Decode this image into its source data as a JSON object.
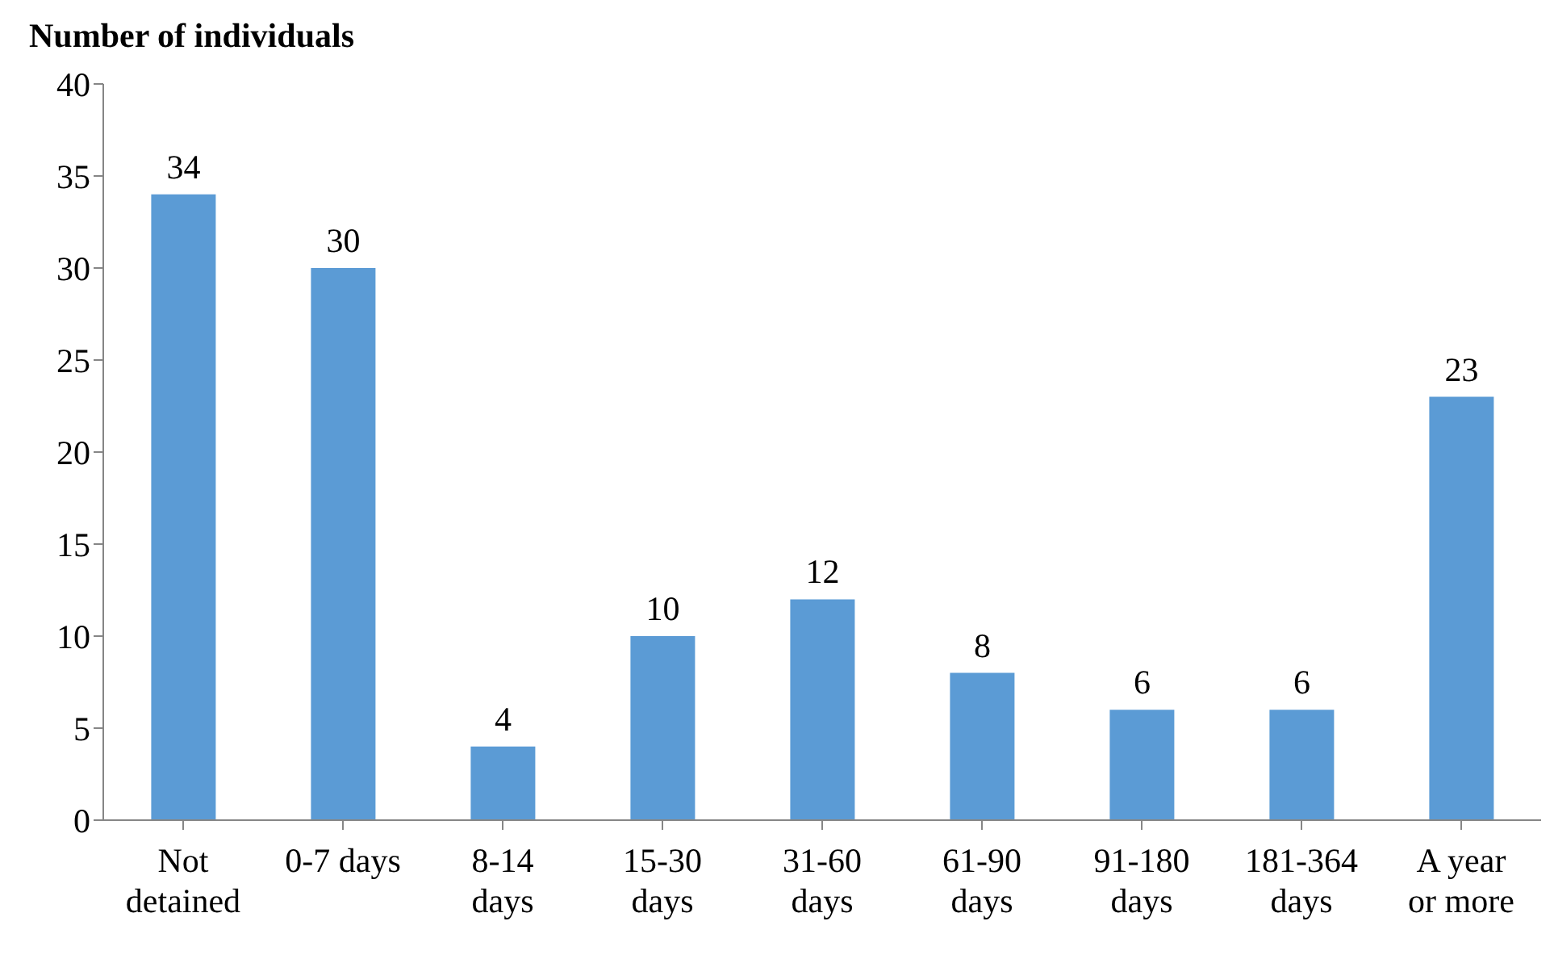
{
  "chart_data": {
    "type": "bar",
    "ylabel": "Number of individuals",
    "categories": [
      "Not detained",
      "0-7 days",
      "8-14 days",
      "15-30 days",
      "31-60 days",
      "61-90 days",
      "91-180 days",
      "181-364 days",
      "A year or more"
    ],
    "values": [
      34,
      30,
      4,
      10,
      12,
      8,
      6,
      6,
      23
    ],
    "color": "#5b9bd5",
    "ylim": [
      0,
      40
    ],
    "yticks": [
      0,
      5,
      10,
      15,
      20,
      25,
      30,
      35,
      40
    ],
    "grid": false,
    "legend": false,
    "data_labels": true
  }
}
